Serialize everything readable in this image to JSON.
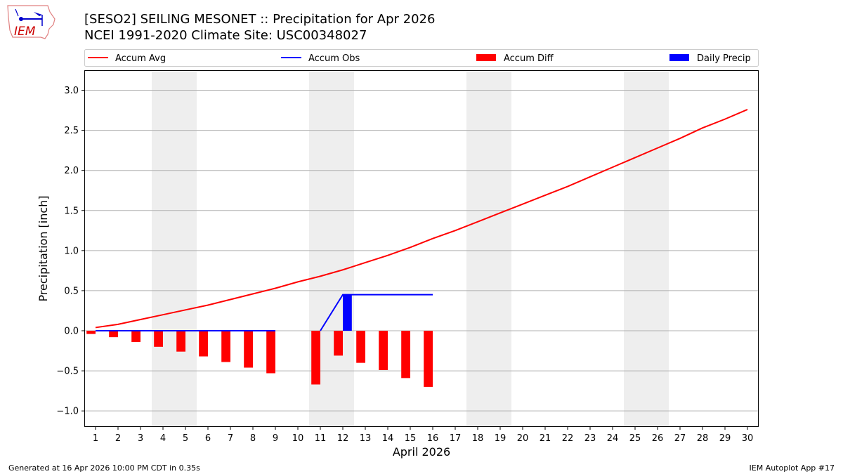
{
  "header": {
    "title_line1": "[SESO2] SEILING MESONET :: Precipitation for Apr 2026",
    "title_line2": "NCEI 1991-2020 Climate Site: USC00348027",
    "logo_text": "IEM"
  },
  "footer": {
    "left": "Generated at 16 Apr 2026 10:00 PM CDT in 0.35s",
    "right": "IEM Autoplot App #17"
  },
  "chart_data": {
    "type": "bar",
    "xlabel": "April 2026",
    "ylabel": "Precipitation [inch]",
    "xlim": [
      0.5,
      30.5
    ],
    "ylim": [
      -1.2,
      3.25
    ],
    "yticks": [
      -1.0,
      -0.5,
      0.0,
      0.5,
      1.0,
      1.5,
      2.0,
      2.5,
      3.0
    ],
    "ytick_labels": [
      "−1.0",
      "−0.5",
      "0.0",
      "0.5",
      "1.0",
      "1.5",
      "2.0",
      "2.5",
      "3.0"
    ],
    "grid": "horizontal",
    "legend_placement": "top",
    "weekend_shading": [
      [
        3.5,
        5.5
      ],
      [
        10.5,
        12.5
      ],
      [
        17.5,
        19.5
      ],
      [
        24.5,
        26.5
      ]
    ],
    "days": [
      1,
      2,
      3,
      4,
      5,
      6,
      7,
      8,
      9,
      10,
      11,
      12,
      13,
      14,
      15,
      16,
      17,
      18,
      19,
      20,
      21,
      22,
      23,
      24,
      25,
      26,
      27,
      28,
      29,
      30
    ],
    "series": [
      {
        "name": "Accum Avg",
        "kind": "line",
        "color": "#ff0000",
        "values": [
          0.04,
          0.08,
          0.14,
          0.2,
          0.26,
          0.32,
          0.39,
          0.46,
          0.53,
          0.61,
          0.68,
          0.76,
          0.85,
          0.94,
          1.04,
          1.15,
          1.25,
          1.36,
          1.47,
          1.58,
          1.69,
          1.8,
          1.92,
          2.04,
          2.16,
          2.28,
          2.4,
          2.53,
          2.64,
          2.76
        ]
      },
      {
        "name": "Accum Obs",
        "kind": "line",
        "color": "#0000ff",
        "values": [
          0,
          0,
          0,
          0,
          0,
          0,
          0,
          0,
          0,
          null,
          0,
          0.45,
          0.45,
          0.45,
          0.45,
          0.45,
          null,
          null,
          null,
          null,
          null,
          null,
          null,
          null,
          null,
          null,
          null,
          null,
          null,
          null
        ]
      },
      {
        "name": "Accum Diff",
        "kind": "bar",
        "color": "#ff0000",
        "values": [
          -0.04,
          -0.08,
          -0.14,
          -0.2,
          -0.26,
          -0.32,
          -0.39,
          -0.46,
          -0.53,
          null,
          -0.67,
          -0.31,
          -0.4,
          -0.49,
          -0.59,
          -0.7,
          null,
          null,
          null,
          null,
          null,
          null,
          null,
          null,
          null,
          null,
          null,
          null,
          null,
          null
        ]
      },
      {
        "name": "Daily Precip",
        "kind": "bar",
        "color": "#0000ff",
        "values": [
          0,
          0,
          0,
          0,
          0,
          0,
          0,
          0,
          0,
          null,
          0,
          0.45,
          0,
          0,
          0,
          0,
          null,
          null,
          null,
          null,
          null,
          null,
          null,
          null,
          null,
          null,
          null,
          null,
          null,
          null
        ]
      }
    ]
  }
}
